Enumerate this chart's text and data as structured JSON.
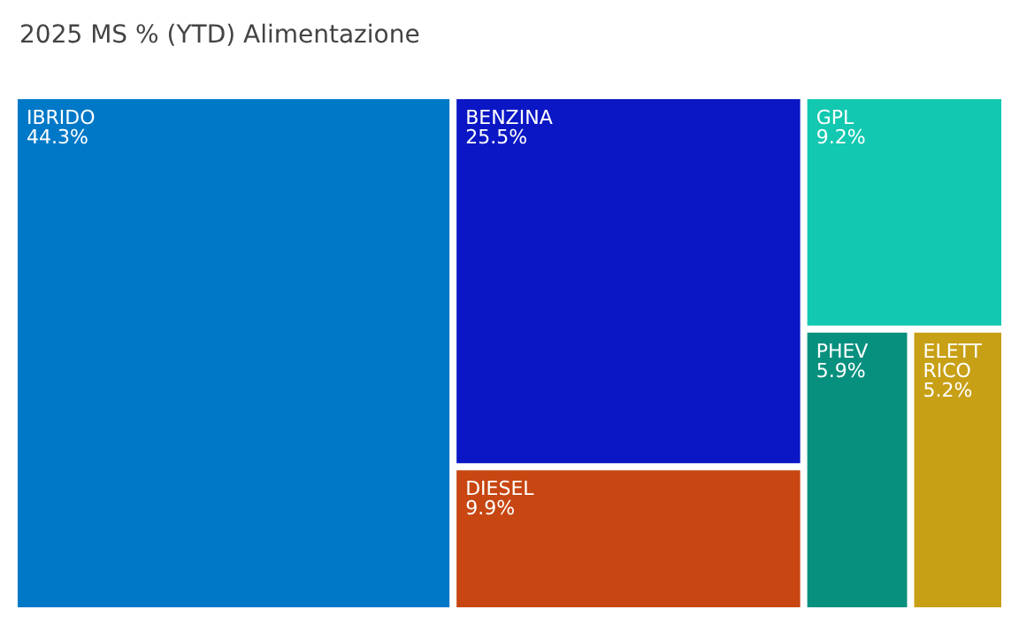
{
  "chart_data": {
    "type": "other",
    "title": "2025 MS % (YTD) Alimentazione",
    "categories": [
      "IBRIDO",
      "BENZINA",
      "DIESEL",
      "GPL",
      "PHEV",
      "ELETTRICO"
    ],
    "values": [
      44.3,
      25.5,
      9.9,
      9.2,
      5.9,
      5.2
    ],
    "value_labels": [
      "44.3%",
      "25.5%",
      "9.9%",
      "9.2%",
      "5.9%",
      "5.2%"
    ],
    "colors": [
      "#0078c8",
      "#0b17c4",
      "#c74612",
      "#12c8b0",
      "#08907e",
      "#c8a016"
    ]
  }
}
